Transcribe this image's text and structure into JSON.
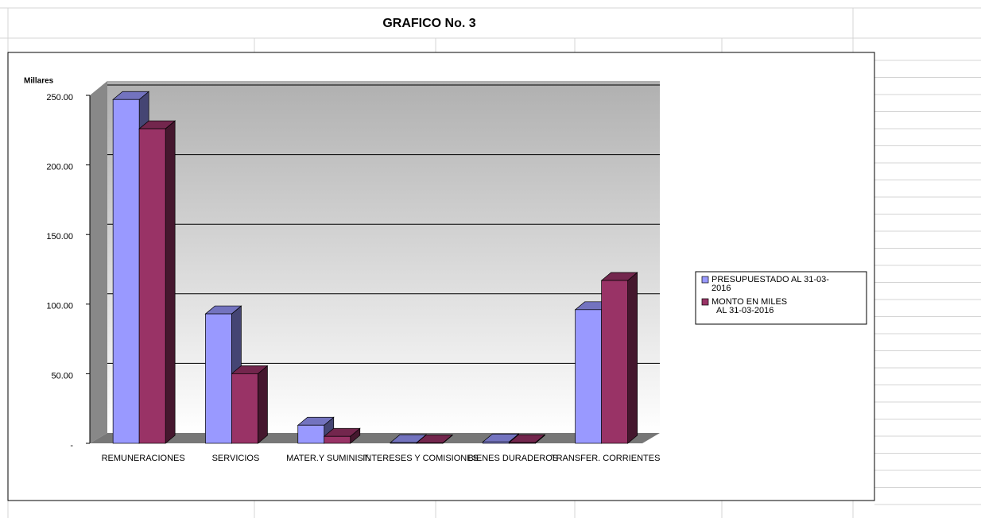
{
  "chart_data": {
    "type": "bar3d",
    "title": "GRAFICO No. 3",
    "y_label": "Millares",
    "categories": [
      "REMUNERACIONES",
      "SERVICIOS",
      "MATER.Y SUMINIST.",
      "INTERESES Y COMISIONES",
      "BIENES DURADEROS",
      "TRANSFER. CORRIENTES"
    ],
    "series": [
      {
        "name": "PRESUPUESTADO AL 31-03-2016",
        "color": "#9999ff",
        "values": [
          247,
          93,
          13,
          0.5,
          1,
          96
        ]
      },
      {
        "name": "MONTO EN MILES AL 31-03-2016",
        "color": "#993366",
        "values": [
          226,
          50,
          5,
          0.3,
          0.5,
          117
        ]
      }
    ],
    "ylim": [
      0,
      250
    ],
    "yticks": [
      {
        "value": 0,
        "label": "-"
      },
      {
        "value": 50,
        "label": "50.00"
      },
      {
        "value": 100,
        "label": "100.00"
      },
      {
        "value": 150,
        "label": "150.00"
      },
      {
        "value": 200,
        "label": "200.00"
      },
      {
        "value": 250,
        "label": "250.00"
      }
    ],
    "grid": true,
    "legend": "right"
  }
}
